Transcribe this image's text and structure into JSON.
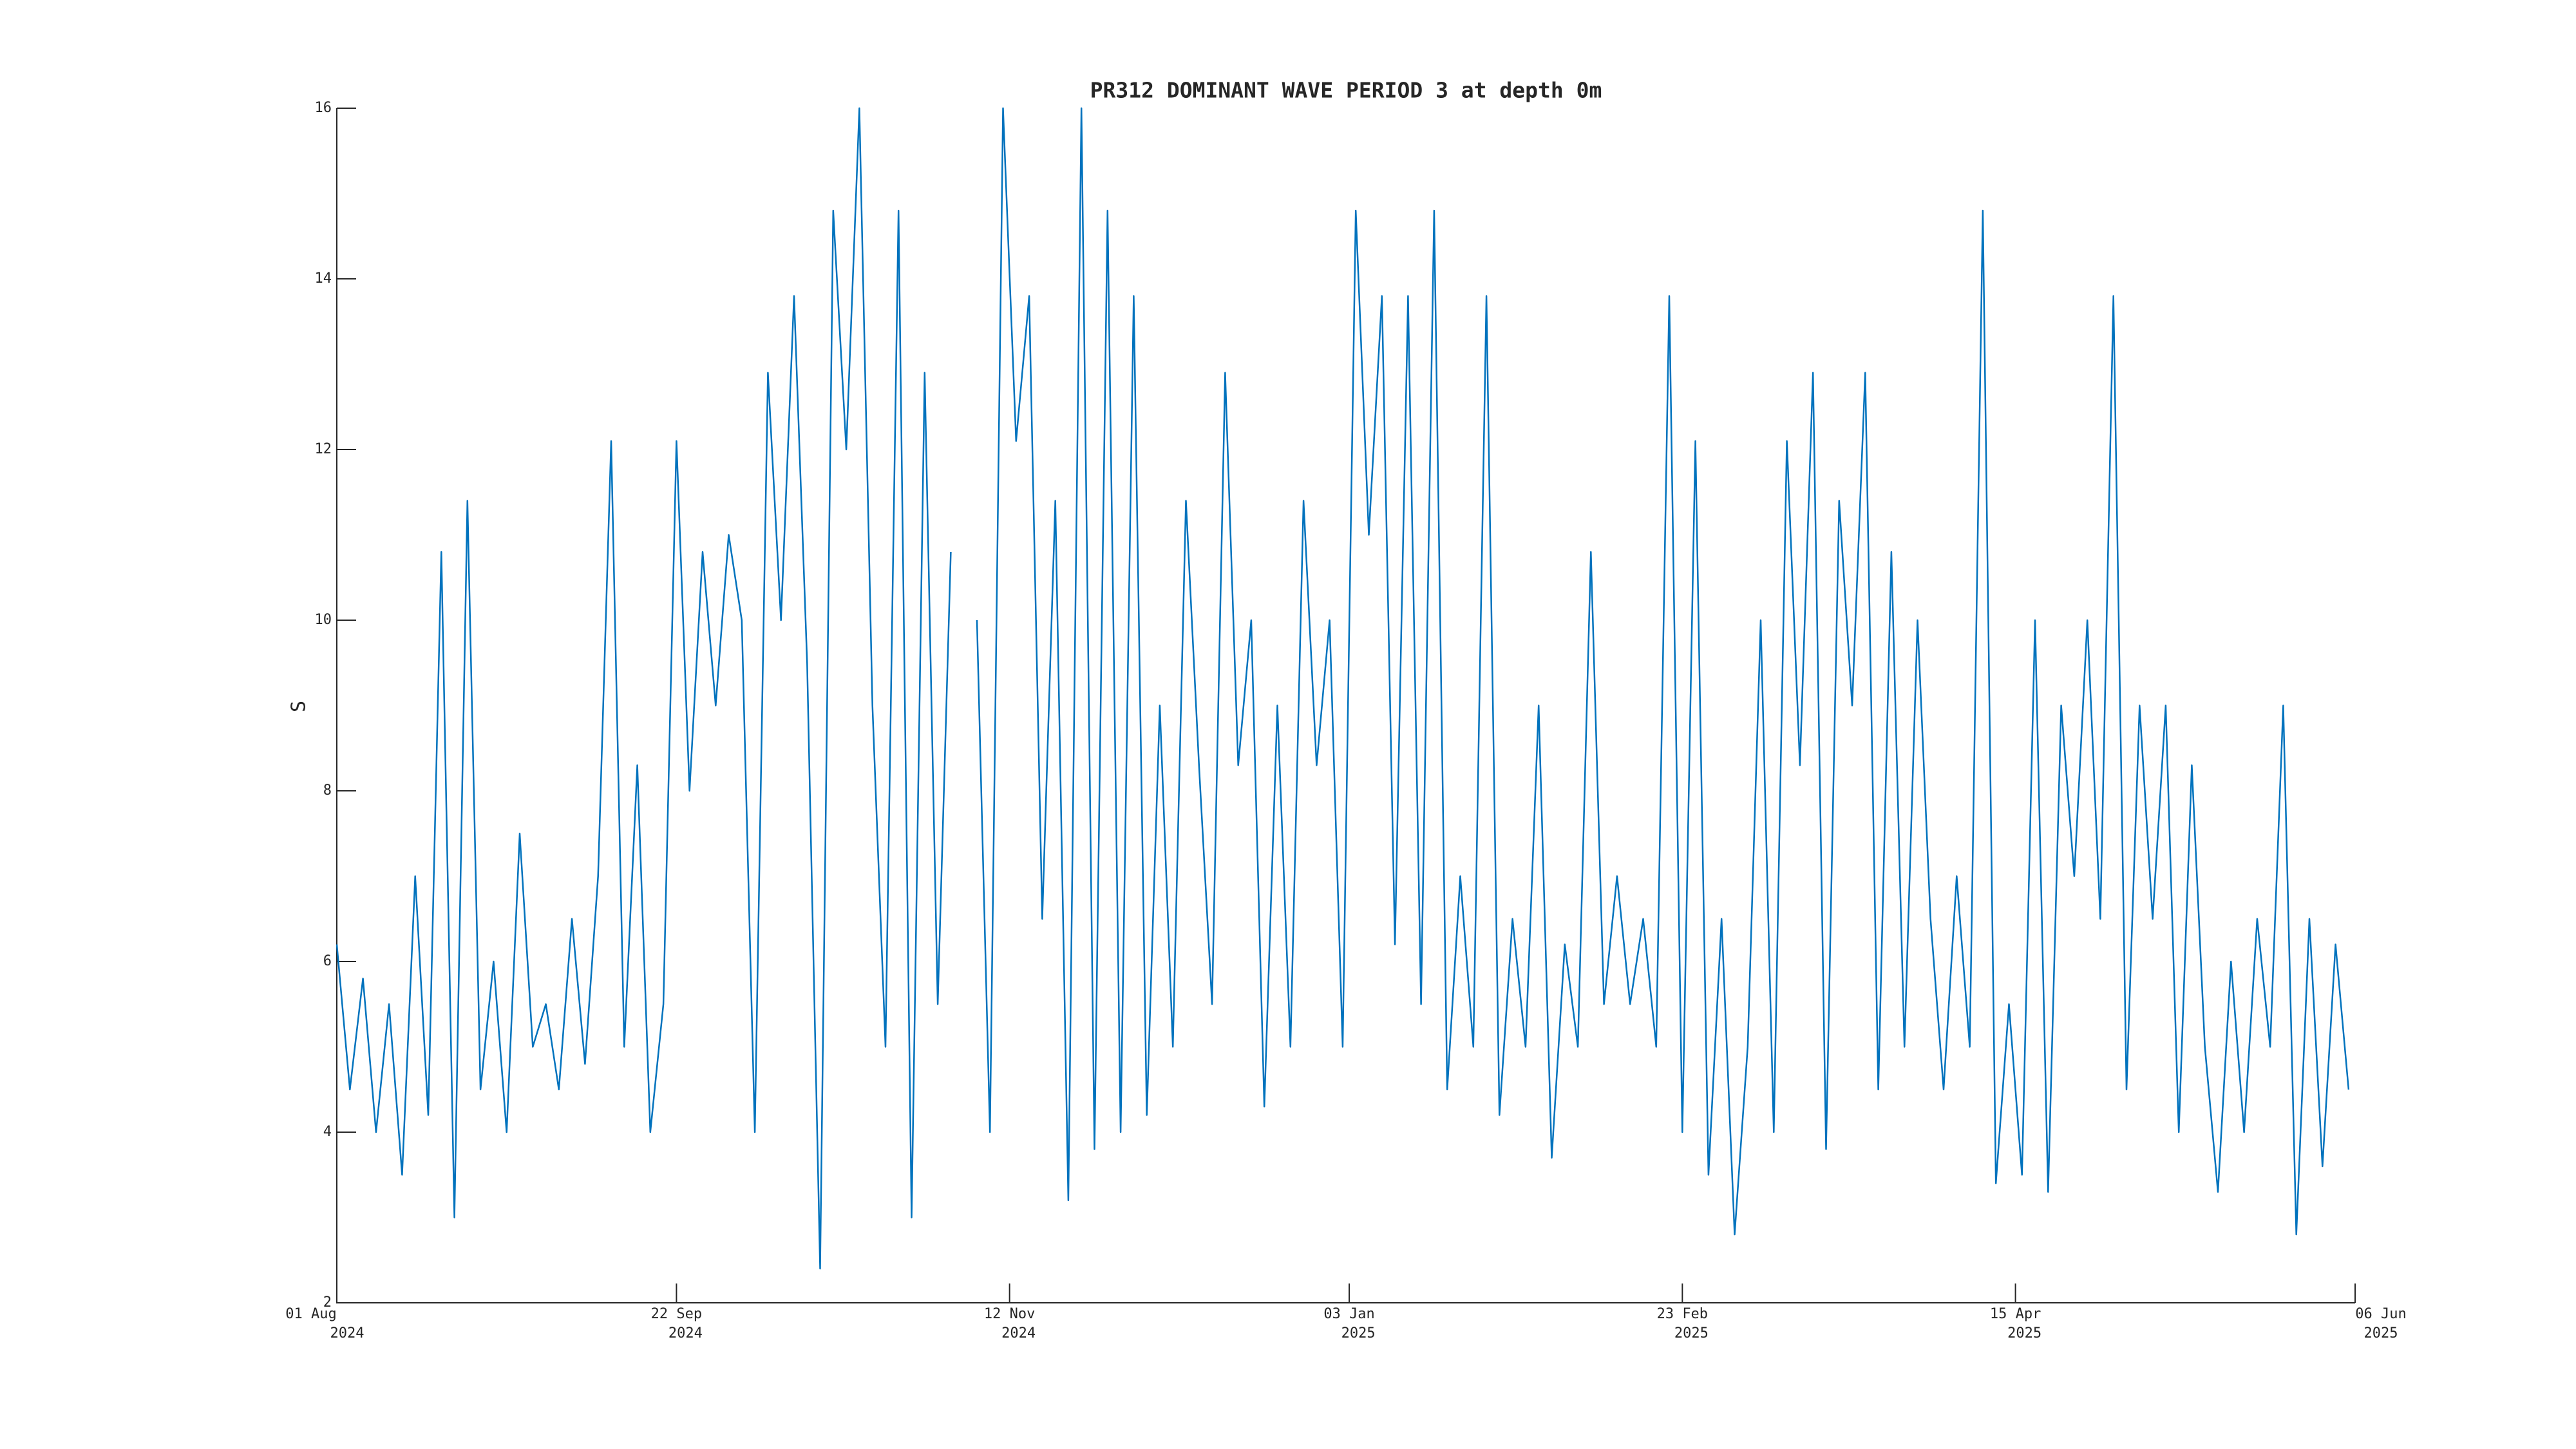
{
  "chart_data": {
    "type": "line",
    "title": "PR312 DOMINANT WAVE PERIOD 3 at depth 0m",
    "y_label": "S",
    "color": "#0072bd",
    "grid": false,
    "xlim": [
      "2024-08-01",
      "2025-06-06"
    ],
    "ylim": [
      2,
      16
    ],
    "yticks": [
      2,
      4,
      6,
      8,
      10,
      12,
      14,
      16
    ],
    "xticks": [
      {
        "value": "2024-08-01",
        "label": [
          "01 Aug",
          "2024"
        ]
      },
      {
        "value": "2024-09-22",
        "label": [
          "22 Sep",
          "2024"
        ]
      },
      {
        "value": "2024-11-12",
        "label": [
          "12 Nov",
          "2024"
        ]
      },
      {
        "value": "2025-01-03",
        "label": [
          "03 Jan",
          "2025"
        ]
      },
      {
        "value": "2025-02-23",
        "label": [
          "23 Feb",
          "2025"
        ]
      },
      {
        "value": "2025-04-15",
        "label": [
          "15 Apr",
          "2025"
        ]
      },
      {
        "value": "2025-06-06",
        "label": [
          "06 Jun",
          "2025"
        ]
      }
    ],
    "x": [
      "2024-08-01",
      "2024-08-03",
      "2024-08-05",
      "2024-08-07",
      "2024-08-09",
      "2024-08-11",
      "2024-08-13",
      "2024-08-15",
      "2024-08-17",
      "2024-08-19",
      "2024-08-21",
      "2024-08-23",
      "2024-08-25",
      "2024-08-27",
      "2024-08-29",
      "2024-08-31",
      "2024-09-02",
      "2024-09-04",
      "2024-09-06",
      "2024-09-08",
      "2024-09-10",
      "2024-09-12",
      "2024-09-14",
      "2024-09-16",
      "2024-09-18",
      "2024-09-20",
      "2024-09-22",
      "2024-09-24",
      "2024-09-26",
      "2024-09-28",
      "2024-09-30",
      "2024-10-02",
      "2024-10-04",
      "2024-10-06",
      "2024-10-08",
      "2024-10-10",
      "2024-10-12",
      "2024-10-14",
      "2024-10-16",
      "2024-10-18",
      "2024-10-20",
      "2024-10-22",
      "2024-10-24",
      "2024-10-26",
      "2024-10-28",
      "2024-10-30",
      "2024-11-01",
      "2024-11-03",
      "2024-11-05",
      "2024-11-07",
      "2024-11-09",
      "2024-11-11",
      "2024-11-13",
      "2024-11-15",
      "2024-11-17",
      "2024-11-19",
      "2024-11-21",
      "2024-11-23",
      "2024-11-25",
      "2024-11-27",
      "2024-11-29",
      "2024-12-01",
      "2024-12-03",
      "2024-12-05",
      "2024-12-07",
      "2024-12-09",
      "2024-12-11",
      "2024-12-13",
      "2024-12-15",
      "2024-12-17",
      "2024-12-19",
      "2024-12-21",
      "2024-12-23",
      "2024-12-25",
      "2024-12-27",
      "2024-12-29",
      "2024-12-31",
      "2025-01-02",
      "2025-01-04",
      "2025-01-06",
      "2025-01-08",
      "2025-01-10",
      "2025-01-12",
      "2025-01-14",
      "2025-01-16",
      "2025-01-18",
      "2025-01-20",
      "2025-01-22",
      "2025-01-24",
      "2025-01-26",
      "2025-01-28",
      "2025-01-30",
      "2025-02-01",
      "2025-02-03",
      "2025-02-05",
      "2025-02-07",
      "2025-02-09",
      "2025-02-11",
      "2025-02-13",
      "2025-02-15",
      "2025-02-17",
      "2025-02-19",
      "2025-02-21",
      "2025-02-23",
      "2025-02-25",
      "2025-02-27",
      "2025-03-01",
      "2025-03-03",
      "2025-03-05",
      "2025-03-07",
      "2025-03-09",
      "2025-03-11",
      "2025-03-13",
      "2025-03-15",
      "2025-03-17",
      "2025-03-19",
      "2025-03-21",
      "2025-03-23",
      "2025-03-25",
      "2025-03-27",
      "2025-03-29",
      "2025-03-31",
      "2025-04-02",
      "2025-04-04",
      "2025-04-06",
      "2025-04-08",
      "2025-04-10",
      "2025-04-12",
      "2025-04-14",
      "2025-04-16",
      "2025-04-18",
      "2025-04-20",
      "2025-04-22",
      "2025-04-24",
      "2025-04-26",
      "2025-04-28",
      "2025-04-30",
      "2025-05-02",
      "2025-05-04",
      "2025-05-06",
      "2025-05-08",
      "2025-05-10",
      "2025-05-12",
      "2025-05-14",
      "2025-05-16",
      "2025-05-18",
      "2025-05-20",
      "2025-05-22",
      "2025-05-24",
      "2025-05-26",
      "2025-05-28",
      "2025-05-30",
      "2025-06-01",
      "2025-06-03",
      "2025-06-05"
    ],
    "values": [
      6.2,
      4.5,
      5.8,
      4.0,
      5.5,
      3.5,
      7.0,
      4.2,
      10.8,
      3.0,
      11.4,
      4.5,
      6.0,
      4.0,
      7.5,
      5.0,
      5.5,
      4.5,
      6.5,
      4.8,
      7.0,
      12.1,
      5.0,
      8.3,
      4.0,
      5.5,
      12.1,
      8.0,
      10.8,
      9.0,
      11.0,
      10.0,
      4.0,
      12.9,
      10.0,
      13.8,
      9.5,
      2.4,
      14.8,
      12.0,
      16.0,
      9.0,
      5.0,
      14.8,
      3.0,
      12.9,
      5.5,
      10.8,
      null,
      10.0,
      4.0,
      16.0,
      12.1,
      13.8,
      6.5,
      11.4,
      3.2,
      16.0,
      3.8,
      14.8,
      4.0,
      13.8,
      4.2,
      9.0,
      5.0,
      11.4,
      8.3,
      5.5,
      12.9,
      8.3,
      10.0,
      4.3,
      9.0,
      5.0,
      11.4,
      8.3,
      10.0,
      5.0,
      14.8,
      11.0,
      13.8,
      6.2,
      13.8,
      5.5,
      14.8,
      4.5,
      7.0,
      5.0,
      13.8,
      4.2,
      6.5,
      5.0,
      9.0,
      3.7,
      6.2,
      5.0,
      10.8,
      5.5,
      7.0,
      5.5,
      6.5,
      5.0,
      13.8,
      4.0,
      12.1,
      3.5,
      6.5,
      2.8,
      5.0,
      10.0,
      4.0,
      12.1,
      8.3,
      12.9,
      3.8,
      11.4,
      9.0,
      12.9,
      4.5,
      10.8,
      5.0,
      10.0,
      6.5,
      4.5,
      7.0,
      5.0,
      14.8,
      3.4,
      5.5,
      3.5,
      10.0,
      3.3,
      9.0,
      7.0,
      10.0,
      6.5,
      13.8,
      4.5,
      9.0,
      6.5,
      9.0,
      4.0,
      8.3,
      5.0,
      3.3,
      6.0,
      4.0,
      6.5,
      5.0,
      9.0,
      2.8,
      6.5,
      3.6,
      6.2,
      4.5
    ]
  }
}
